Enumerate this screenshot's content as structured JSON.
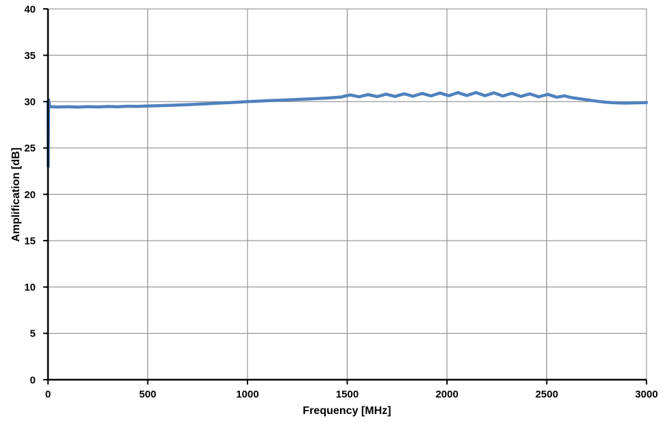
{
  "figure": {
    "background": "#ffffff"
  },
  "chart_data": {
    "type": "line",
    "title": "",
    "xlabel": "Frequency [MHz]",
    "ylabel": "Amplification [dB]",
    "xlim": [
      0,
      3000
    ],
    "ylim": [
      0,
      40
    ],
    "x_ticks": [
      0,
      500,
      1000,
      1500,
      2000,
      2500,
      3000
    ],
    "y_ticks": [
      0,
      5,
      10,
      15,
      20,
      25,
      30,
      35,
      40
    ],
    "grid": true,
    "legend": "none",
    "colors": {
      "line": "#4F81BD",
      "grid": "#808080",
      "axis": "#000000",
      "text": "#000000"
    },
    "series": [
      {
        "name": "Amplification",
        "points": [
          [
            0,
            29.9
          ],
          [
            1,
            23.0
          ],
          [
            3,
            30.2
          ],
          [
            8,
            29.55
          ],
          [
            15,
            29.45
          ],
          [
            50,
            29.42
          ],
          [
            100,
            29.45
          ],
          [
            150,
            29.41
          ],
          [
            200,
            29.46
          ],
          [
            250,
            29.43
          ],
          [
            300,
            29.47
          ],
          [
            350,
            29.45
          ],
          [
            400,
            29.5
          ],
          [
            450,
            29.48
          ],
          [
            500,
            29.53
          ],
          [
            550,
            29.56
          ],
          [
            600,
            29.59
          ],
          [
            650,
            29.63
          ],
          [
            700,
            29.67
          ],
          [
            750,
            29.72
          ],
          [
            800,
            29.77
          ],
          [
            850,
            29.83
          ],
          [
            900,
            29.88
          ],
          [
            950,
            29.94
          ],
          [
            1000,
            30.0
          ],
          [
            1050,
            30.05
          ],
          [
            1100,
            30.1
          ],
          [
            1150,
            30.14
          ],
          [
            1200,
            30.18
          ],
          [
            1250,
            30.23
          ],
          [
            1300,
            30.28
          ],
          [
            1350,
            30.33
          ],
          [
            1400,
            30.39
          ],
          [
            1440,
            30.44
          ],
          [
            1470,
            30.5
          ],
          [
            1492,
            30.61
          ],
          [
            1515,
            30.72
          ],
          [
            1537,
            30.62
          ],
          [
            1560,
            30.52
          ],
          [
            1582,
            30.64
          ],
          [
            1605,
            30.76
          ],
          [
            1627,
            30.65
          ],
          [
            1650,
            30.54
          ],
          [
            1672,
            30.67
          ],
          [
            1695,
            30.8
          ],
          [
            1717,
            30.68
          ],
          [
            1740,
            30.56
          ],
          [
            1762,
            30.7
          ],
          [
            1785,
            30.84
          ],
          [
            1807,
            30.71
          ],
          [
            1830,
            30.58
          ],
          [
            1852,
            30.73
          ],
          [
            1875,
            30.88
          ],
          [
            1897,
            30.75
          ],
          [
            1920,
            30.62
          ],
          [
            1942,
            30.77
          ],
          [
            1965,
            30.92
          ],
          [
            1987,
            30.78
          ],
          [
            2010,
            30.64
          ],
          [
            2032,
            30.8
          ],
          [
            2055,
            30.97
          ],
          [
            2077,
            30.81
          ],
          [
            2100,
            30.66
          ],
          [
            2122,
            30.82
          ],
          [
            2145,
            30.98
          ],
          [
            2167,
            30.81
          ],
          [
            2190,
            30.64
          ],
          [
            2212,
            30.79
          ],
          [
            2235,
            30.94
          ],
          [
            2257,
            30.77
          ],
          [
            2280,
            30.6
          ],
          [
            2302,
            30.75
          ],
          [
            2325,
            30.9
          ],
          [
            2347,
            30.73
          ],
          [
            2370,
            30.56
          ],
          [
            2392,
            30.7
          ],
          [
            2415,
            30.84
          ],
          [
            2437,
            30.68
          ],
          [
            2460,
            30.52
          ],
          [
            2482,
            30.65
          ],
          [
            2505,
            30.78
          ],
          [
            2527,
            30.63
          ],
          [
            2550,
            30.48
          ],
          [
            2570,
            30.55
          ],
          [
            2590,
            30.62
          ],
          [
            2620,
            30.45
          ],
          [
            2650,
            30.35
          ],
          [
            2680,
            30.26
          ],
          [
            2710,
            30.17
          ],
          [
            2740,
            30.08
          ],
          [
            2770,
            30.0
          ],
          [
            2800,
            29.93
          ],
          [
            2830,
            29.89
          ],
          [
            2860,
            29.86
          ],
          [
            2890,
            29.84
          ],
          [
            2920,
            29.85
          ],
          [
            2950,
            29.87
          ],
          [
            2980,
            29.88
          ],
          [
            3000,
            29.9
          ]
        ]
      }
    ]
  }
}
